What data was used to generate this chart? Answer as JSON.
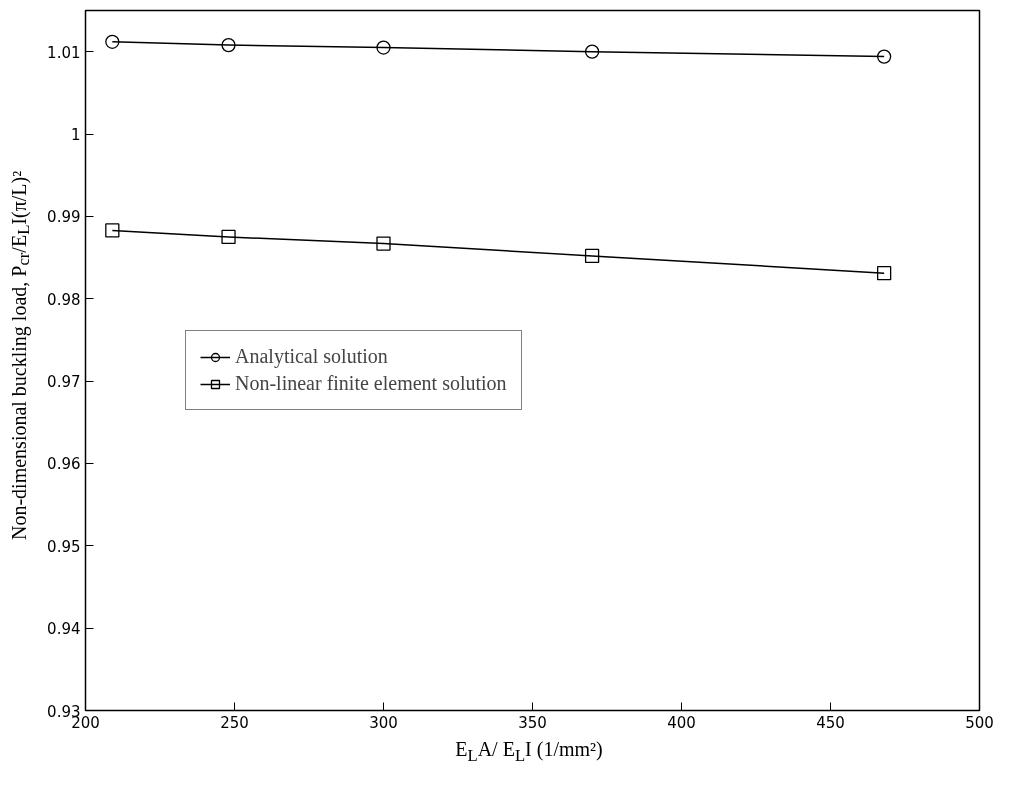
{
  "chart_data": {
    "type": "line",
    "xlabel": "E$_{L}$A/ E$_{L}$I  (1/mm²)",
    "ylabel": "Non-dimensional buckling load, P$_{cr}$/E$_{L}$I(π/L)²",
    "x": [
      209,
      248,
      300,
      370,
      468
    ],
    "series": [
      {
        "name": "Analytical solution",
        "color": "#000000",
        "marker": "circle",
        "values": [
          1.0112,
          1.0108,
          1.0105,
          1.01,
          1.0094
        ]
      },
      {
        "name": "Non-linear finite element solution",
        "color": "#000000",
        "marker": "square",
        "values": [
          0.9883,
          0.9875,
          0.9867,
          0.9852,
          0.9831
        ]
      }
    ],
    "xlim": [
      200,
      500
    ],
    "xticks": [
      200,
      250,
      300,
      350,
      400,
      450,
      500
    ],
    "ylim": [
      0.93,
      1.015
    ],
    "yticks": [
      0.93,
      0.94,
      0.95,
      0.96,
      0.97,
      0.98,
      0.99,
      {
        "value": 1.0,
        "label": "1"
      },
      1.01
    ],
    "grid": false,
    "legend": "center left",
    "line_style": "solid"
  }
}
